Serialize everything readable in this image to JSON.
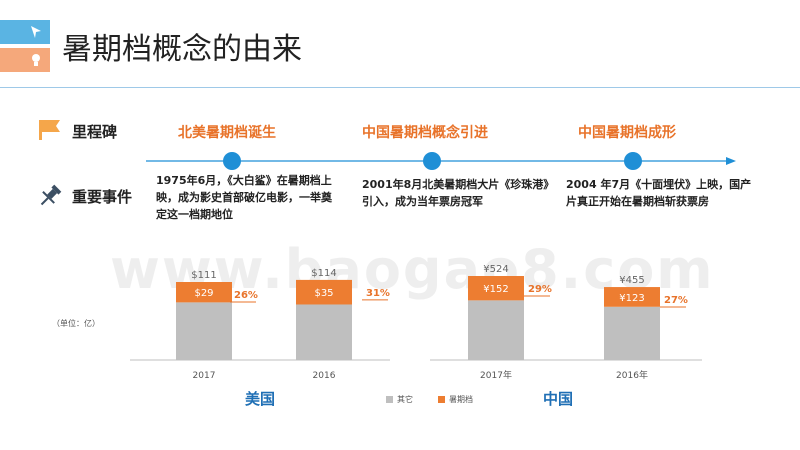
{
  "title": "暑期档概念的由来",
  "rows": {
    "milestone_label": "里程碑",
    "event_label": "重要事件"
  },
  "milestones": [
    "北美暑期档诞生",
    "中国暑期档概念引进",
    "中国暑期档成形"
  ],
  "events": [
    "1975年6月，《大白鲨》在暑期档上映，成为影史首部破亿电影，一举奠定这一档期地位",
    "2001年8月北美暑期档大片《珍珠港》引入，成为当年票房冠军",
    "2004 年7月《十面埋伏》上映，国产片真正开始在暑期档斩获票房"
  ],
  "unit_label": "（单位：亿）",
  "regions": [
    "美国",
    "中国"
  ],
  "legend": [
    "其它",
    "暑期档"
  ],
  "watermark": "www.baogao8.com",
  "colors": {
    "other": "#bfbfbf",
    "summer": "#ed7d31",
    "accent": "#e8732a",
    "timeline": "#1f8fd6",
    "region": "#1f6fb5"
  },
  "chart_data": [
    {
      "type": "bar",
      "stacked": true,
      "region": "美国",
      "categories": [
        "2017",
        "2016"
      ],
      "totals_labels": [
        "$111",
        "$114"
      ],
      "series": [
        {
          "name": "其它",
          "values": [
            82,
            79
          ]
        },
        {
          "name": "暑期档",
          "values": [
            29,
            35
          ],
          "labels": [
            "$29",
            "$35"
          ]
        }
      ],
      "share_labels": [
        "26%",
        "31%"
      ]
    },
    {
      "type": "bar",
      "stacked": true,
      "region": "中国",
      "categories": [
        "2017年",
        "2016年"
      ],
      "totals_labels": [
        "¥524",
        "¥455"
      ],
      "series": [
        {
          "name": "其它",
          "values": [
            372,
            332
          ]
        },
        {
          "name": "暑期档",
          "values": [
            152,
            123
          ],
          "labels": [
            "¥152",
            "¥123"
          ]
        }
      ],
      "share_labels": [
        "29%",
        "27%"
      ]
    }
  ]
}
